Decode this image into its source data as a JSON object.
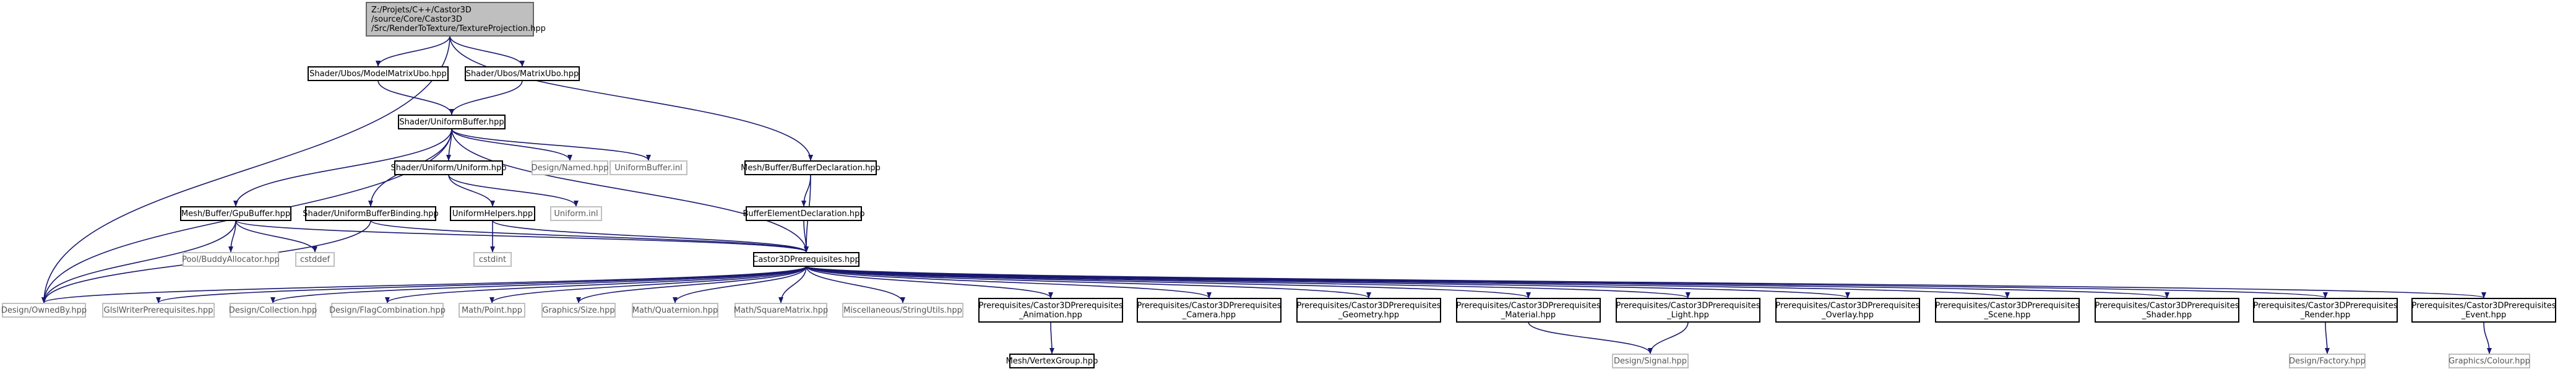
{
  "colors": {
    "edge": "#191970",
    "root_fill": "#bfbfbf",
    "root_stroke": "#666666",
    "documented_stroke": "#000000",
    "external_stroke": "#bfbfbf",
    "text": "#000000",
    "external_text": "#555555"
  },
  "nodes": [
    {
      "id": "root",
      "lines": [
        "Z:/Projets/C++/Castor3D",
        "/source/Core/Castor3D",
        "/Src/RenderToTexture/TextureProjection.hpp"
      ],
      "kind": "root"
    },
    {
      "id": "modelmatrixubo",
      "lines": [
        "Shader/Ubos/ModelMatrixUbo.hpp"
      ],
      "kind": "doc"
    },
    {
      "id": "matrixubo",
      "lines": [
        "Shader/Ubos/MatrixUbo.hpp"
      ],
      "kind": "doc"
    },
    {
      "id": "uniformbuffer",
      "lines": [
        "Shader/UniformBuffer.hpp"
      ],
      "kind": "doc"
    },
    {
      "id": "bufferdecl",
      "lines": [
        "Mesh/Buffer/BufferDeclaration.hpp"
      ],
      "kind": "doc"
    },
    {
      "id": "uniformhpp",
      "lines": [
        "Shader/Uniform/Uniform.hpp"
      ],
      "kind": "doc"
    },
    {
      "id": "designnamed",
      "lines": [
        "Design/Named.hpp"
      ],
      "kind": "ext"
    },
    {
      "id": "uniformbufferinl",
      "lines": [
        "UniformBuffer.inl"
      ],
      "kind": "ext"
    },
    {
      "id": "gpubuffer",
      "lines": [
        "Mesh/Buffer/GpuBuffer.hpp"
      ],
      "kind": "doc"
    },
    {
      "id": "ubobinding",
      "lines": [
        "Shader/UniformBufferBinding.hpp"
      ],
      "kind": "doc"
    },
    {
      "id": "uniformhelpers",
      "lines": [
        "UniformHelpers.hpp"
      ],
      "kind": "doc"
    },
    {
      "id": "uniforminl",
      "lines": [
        "Uniform.inl"
      ],
      "kind": "ext"
    },
    {
      "id": "bufferelemdecl",
      "lines": [
        "BufferElementDeclaration.hpp"
      ],
      "kind": "doc"
    },
    {
      "id": "poolbuddy",
      "lines": [
        "Pool/BuddyAllocator.hpp"
      ],
      "kind": "ext"
    },
    {
      "id": "cstddef",
      "lines": [
        "cstddef"
      ],
      "kind": "ext"
    },
    {
      "id": "cstdint",
      "lines": [
        "cstdint"
      ],
      "kind": "ext"
    },
    {
      "id": "prereq",
      "lines": [
        "Castor3DPrerequisites.hpp"
      ],
      "kind": "doc"
    },
    {
      "id": "ownedby",
      "lines": [
        "Design/OwnedBy.hpp"
      ],
      "kind": "ext"
    },
    {
      "id": "glslwriter",
      "lines": [
        "GlslWriterPrerequisites.hpp"
      ],
      "kind": "ext"
    },
    {
      "id": "collection",
      "lines": [
        "Design/Collection.hpp"
      ],
      "kind": "ext"
    },
    {
      "id": "flagcomb",
      "lines": [
        "Design/FlagCombination.hpp"
      ],
      "kind": "ext"
    },
    {
      "id": "mathpoint",
      "lines": [
        "Math/Point.hpp"
      ],
      "kind": "ext"
    },
    {
      "id": "graphicssize",
      "lines": [
        "Graphics/Size.hpp"
      ],
      "kind": "ext"
    },
    {
      "id": "mathquat",
      "lines": [
        "Math/Quaternion.hpp"
      ],
      "kind": "ext"
    },
    {
      "id": "mathsqmat",
      "lines": [
        "Math/SquareMatrix.hpp"
      ],
      "kind": "ext"
    },
    {
      "id": "miscstring",
      "lines": [
        "Miscellaneous/StringUtils.hpp"
      ],
      "kind": "ext"
    },
    {
      "id": "p_anim",
      "lines": [
        "Prerequisites/Castor3DPrerequisites",
        "_Animation.hpp"
      ],
      "kind": "doc"
    },
    {
      "id": "p_camera",
      "lines": [
        "Prerequisites/Castor3DPrerequisites",
        "_Camera.hpp"
      ],
      "kind": "doc"
    },
    {
      "id": "p_geom",
      "lines": [
        "Prerequisites/Castor3DPrerequisites",
        "_Geometry.hpp"
      ],
      "kind": "doc"
    },
    {
      "id": "p_material",
      "lines": [
        "Prerequisites/Castor3DPrerequisites",
        "_Material.hpp"
      ],
      "kind": "doc"
    },
    {
      "id": "p_light",
      "lines": [
        "Prerequisites/Castor3DPrerequisites",
        "_Light.hpp"
      ],
      "kind": "doc"
    },
    {
      "id": "p_overlay",
      "lines": [
        "Prerequisites/Castor3DPrerequisites",
        "_Overlay.hpp"
      ],
      "kind": "doc"
    },
    {
      "id": "p_scene",
      "lines": [
        "Prerequisites/Castor3DPrerequisites",
        "_Scene.hpp"
      ],
      "kind": "doc"
    },
    {
      "id": "p_shader",
      "lines": [
        "Prerequisites/Castor3DPrerequisites",
        "_Shader.hpp"
      ],
      "kind": "doc"
    },
    {
      "id": "p_render",
      "lines": [
        "Prerequisites/Castor3DPrerequisites",
        "_Render.hpp"
      ],
      "kind": "doc"
    },
    {
      "id": "p_event",
      "lines": [
        "Prerequisites/Castor3DPrerequisites",
        "_Event.hpp"
      ],
      "kind": "doc"
    },
    {
      "id": "vertexgroup",
      "lines": [
        "Mesh/VertexGroup.hpp"
      ],
      "kind": "doc"
    },
    {
      "id": "designsignal",
      "lines": [
        "Design/Signal.hpp"
      ],
      "kind": "ext"
    },
    {
      "id": "designfactory",
      "lines": [
        "Design/Factory.hpp"
      ],
      "kind": "ext"
    },
    {
      "id": "graphicscolour",
      "lines": [
        "Graphics/Colour.hpp"
      ],
      "kind": "ext"
    }
  ],
  "edges": [
    [
      "root",
      "modelmatrixubo"
    ],
    [
      "root",
      "matrixubo"
    ],
    [
      "root",
      "bufferdecl"
    ],
    [
      "root",
      "ownedby"
    ],
    [
      "modelmatrixubo",
      "uniformbuffer"
    ],
    [
      "matrixubo",
      "uniformbuffer"
    ],
    [
      "uniformbuffer",
      "uniformhpp"
    ],
    [
      "uniformbuffer",
      "designnamed"
    ],
    [
      "uniformbuffer",
      "uniformbufferinl"
    ],
    [
      "uniformbuffer",
      "gpubuffer"
    ],
    [
      "uniformbuffer",
      "ubobinding"
    ],
    [
      "uniformbuffer",
      "prereq"
    ],
    [
      "uniformbuffer",
      "ownedby"
    ],
    [
      "bufferdecl",
      "bufferelemdecl"
    ],
    [
      "bufferdecl",
      "prereq"
    ],
    [
      "bufferelemdecl",
      "prereq"
    ],
    [
      "uniformhpp",
      "uniformhelpers"
    ],
    [
      "uniformhpp",
      "uniforminl"
    ],
    [
      "uniformhelpers",
      "cstdint"
    ],
    [
      "uniformhelpers",
      "prereq"
    ],
    [
      "gpubuffer",
      "poolbuddy"
    ],
    [
      "gpubuffer",
      "cstddef"
    ],
    [
      "gpubuffer",
      "prereq"
    ],
    [
      "gpubuffer",
      "ownedby"
    ],
    [
      "ubobinding",
      "prereq"
    ],
    [
      "ubobinding",
      "ownedby"
    ],
    [
      "prereq",
      "ownedby"
    ],
    [
      "prereq",
      "glslwriter"
    ],
    [
      "prereq",
      "collection"
    ],
    [
      "prereq",
      "flagcomb"
    ],
    [
      "prereq",
      "mathpoint"
    ],
    [
      "prereq",
      "graphicssize"
    ],
    [
      "prereq",
      "mathquat"
    ],
    [
      "prereq",
      "mathsqmat"
    ],
    [
      "prereq",
      "miscstring"
    ],
    [
      "prereq",
      "p_anim"
    ],
    [
      "prereq",
      "p_camera"
    ],
    [
      "prereq",
      "p_geom"
    ],
    [
      "prereq",
      "p_material"
    ],
    [
      "prereq",
      "p_light"
    ],
    [
      "prereq",
      "p_overlay"
    ],
    [
      "prereq",
      "p_scene"
    ],
    [
      "prereq",
      "p_shader"
    ],
    [
      "prereq",
      "p_render"
    ],
    [
      "prereq",
      "p_event"
    ],
    [
      "p_anim",
      "vertexgroup"
    ],
    [
      "p_material",
      "designsignal"
    ],
    [
      "p_light",
      "designsignal"
    ],
    [
      "p_render",
      "designfactory"
    ],
    [
      "p_event",
      "graphicscolour"
    ]
  ]
}
